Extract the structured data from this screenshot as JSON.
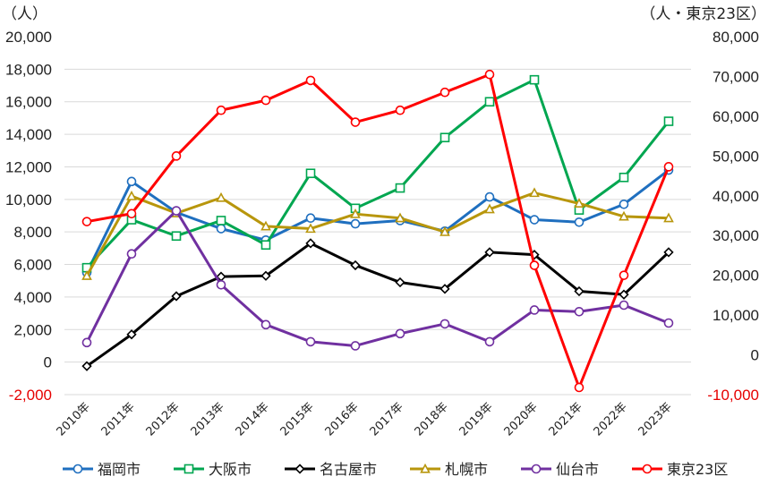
{
  "chart_data": {
    "type": "line",
    "categories": [
      "2010年",
      "2011年",
      "2012年",
      "2013年",
      "2014年",
      "2015年",
      "2016年",
      "2017年",
      "2018年",
      "2019年",
      "2020年",
      "2021年",
      "2022年",
      "2023年"
    ],
    "y_left": {
      "unit_label": "（人）",
      "ylim": [
        -2000,
        20000
      ],
      "ticks": [
        -2000,
        0,
        2000,
        4000,
        6000,
        8000,
        10000,
        12000,
        14000,
        16000,
        18000,
        20000
      ],
      "tick_labels": [
        "-2,000",
        "0",
        "2,000",
        "4,000",
        "6,000",
        "8,000",
        "10,000",
        "12,000",
        "14,000",
        "16,000",
        "18,000",
        "20,000"
      ]
    },
    "y_right": {
      "unit_label": "（人・東京23区）",
      "ylim": [
        -10000,
        80000
      ],
      "ticks": [
        -10000,
        0,
        10000,
        20000,
        30000,
        40000,
        50000,
        60000,
        70000,
        80000
      ],
      "tick_labels": [
        "-10,000",
        "0",
        "10,000",
        "20,000",
        "30,000",
        "40,000",
        "50,000",
        "60,000",
        "70,000",
        "80,000"
      ]
    },
    "grid": "horizontal",
    "legend_position": "bottom",
    "series": [
      {
        "name": "福岡市",
        "color": "#1f6fbf",
        "marker": "circle",
        "axis": "left",
        "values": [
          5500,
          11100,
          9200,
          8200,
          7500,
          8850,
          8500,
          8700,
          8050,
          10150,
          8750,
          8600,
          9700,
          11800
        ]
      },
      {
        "name": "大阪市",
        "color": "#00a650",
        "marker": "square",
        "axis": "left",
        "values": [
          5800,
          8750,
          7750,
          8700,
          7200,
          11600,
          9450,
          10700,
          13800,
          16000,
          17350,
          9350,
          11350,
          14800
        ]
      },
      {
        "name": "名古屋市",
        "color": "#000000",
        "marker": "diamond",
        "axis": "left",
        "values": [
          -250,
          1700,
          4050,
          5250,
          5300,
          7300,
          5950,
          4900,
          4500,
          6750,
          6600,
          4350,
          4150,
          6750
        ]
      },
      {
        "name": "札幌市",
        "color": "#b8960c",
        "marker": "triangle",
        "axis": "left",
        "values": [
          5300,
          10200,
          9150,
          10100,
          8350,
          8200,
          9100,
          8850,
          8000,
          9400,
          10400,
          9750,
          8950,
          8850
        ]
      },
      {
        "name": "仙台市",
        "color": "#7030a0",
        "marker": "circle",
        "axis": "left",
        "values": [
          1200,
          6650,
          9300,
          4750,
          2300,
          1250,
          1000,
          1750,
          2350,
          1250,
          3200,
          3100,
          3500,
          2400
        ]
      },
      {
        "name": "東京23区",
        "color": "#ff0000",
        "marker": "circle",
        "axis": "right",
        "values": [
          33500,
          35500,
          50000,
          61500,
          64000,
          69000,
          58500,
          61500,
          66000,
          70500,
          22500,
          -8200,
          20000,
          47300
        ]
      }
    ]
  }
}
